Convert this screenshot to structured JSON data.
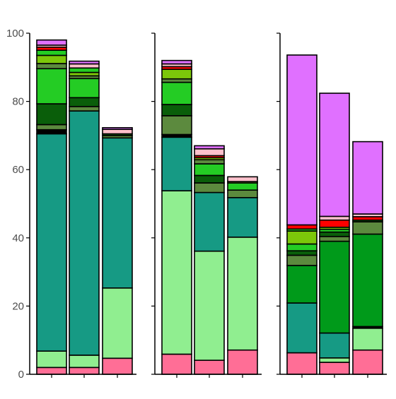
{
  "chart_data": {
    "type": "bar",
    "stacked": true,
    "facets": 3,
    "ylim": [
      0,
      100
    ],
    "y_ticks": [
      0,
      20,
      40,
      60,
      80,
      100
    ],
    "y_tick_labels": [
      "0",
      "20",
      "40",
      "60",
      "80",
      "100"
    ],
    "grid": false,
    "legend": "none",
    "x_tick_labels_visible": false,
    "colors": {
      "pink": "#FF6E96",
      "lightgreen": "#90EE90",
      "teal": "#169A84",
      "olive": "#5C8A3E",
      "darkgreen": "#0A5E0A",
      "green": "#24CC24",
      "lime": "#7CC70A",
      "red": "#FF0000",
      "lightpink": "#FFC0CB",
      "violet": "#E070FF",
      "midgreen": "#009A1A",
      "black": "#000000"
    },
    "panels": [
      {
        "bars": [
          {
            "segments": [
              {
                "color": "pink",
                "value": 2.0
              },
              {
                "color": "lightgreen",
                "value": 4.8
              },
              {
                "color": "teal",
                "value": 63.7
              },
              {
                "color": "black",
                "value": 1.2
              },
              {
                "color": "olive",
                "value": 1.5
              },
              {
                "color": "darkgreen",
                "value": 6.1
              },
              {
                "color": "green",
                "value": 10.3
              },
              {
                "color": "olive",
                "value": 1.5
              },
              {
                "color": "lime",
                "value": 2.4
              },
              {
                "color": "green",
                "value": 1.5
              },
              {
                "color": "red",
                "value": 0.9
              },
              {
                "color": "lightpink",
                "value": 0.6
              },
              {
                "color": "violet",
                "value": 1.5
              }
            ]
          },
          {
            "segments": [
              {
                "color": "pink",
                "value": 2.0
              },
              {
                "color": "lightgreen",
                "value": 3.6
              },
              {
                "color": "teal",
                "value": 71.6
              },
              {
                "color": "olive",
                "value": 1.3
              },
              {
                "color": "darkgreen",
                "value": 2.6
              },
              {
                "color": "green",
                "value": 5.6
              },
              {
                "color": "olive",
                "value": 0.8
              },
              {
                "color": "lime",
                "value": 1.0
              },
              {
                "color": "green",
                "value": 1.3
              },
              {
                "color": "lightpink",
                "value": 1.2
              },
              {
                "color": "violet",
                "value": 0.8
              }
            ]
          },
          {
            "segments": [
              {
                "color": "pink",
                "value": 4.7
              },
              {
                "color": "lightgreen",
                "value": 20.6
              },
              {
                "color": "teal",
                "value": 44.0
              },
              {
                "color": "olive",
                "value": 0.7
              },
              {
                "color": "darkgreen",
                "value": 0.5
              },
              {
                "color": "lightpink",
                "value": 1.3
              },
              {
                "color": "violet",
                "value": 0.5
              }
            ]
          }
        ]
      },
      {
        "bars": [
          {
            "segments": [
              {
                "color": "pink",
                "value": 5.9
              },
              {
                "color": "lightgreen",
                "value": 47.9
              },
              {
                "color": "teal",
                "value": 15.7
              },
              {
                "color": "black",
                "value": 0.8
              },
              {
                "color": "olive",
                "value": 5.5
              },
              {
                "color": "darkgreen",
                "value": 3.3
              },
              {
                "color": "green",
                "value": 6.5
              },
              {
                "color": "olive",
                "value": 1.0
              },
              {
                "color": "lime",
                "value": 2.8
              },
              {
                "color": "red",
                "value": 0.8
              },
              {
                "color": "lightpink",
                "value": 0.8
              },
              {
                "color": "violet",
                "value": 1.0
              }
            ]
          },
          {
            "segments": [
              {
                "color": "pink",
                "value": 4.1
              },
              {
                "color": "lightgreen",
                "value": 32.0
              },
              {
                "color": "teal",
                "value": 17.2
              },
              {
                "color": "olive",
                "value": 2.8
              },
              {
                "color": "darkgreen",
                "value": 2.2
              },
              {
                "color": "green",
                "value": 3.4
              },
              {
                "color": "olive",
                "value": 1.2
              },
              {
                "color": "lime",
                "value": 0.6
              },
              {
                "color": "red",
                "value": 0.6
              },
              {
                "color": "lightpink",
                "value": 2.0
              },
              {
                "color": "violet",
                "value": 0.9
              }
            ]
          },
          {
            "segments": [
              {
                "color": "pink",
                "value": 7.1
              },
              {
                "color": "lightgreen",
                "value": 33.1
              },
              {
                "color": "teal",
                "value": 11.6
              },
              {
                "color": "olive",
                "value": 2.2
              },
              {
                "color": "green",
                "value": 2.1
              },
              {
                "color": "lime",
                "value": 0.4
              },
              {
                "color": "lightpink",
                "value": 1.4
              }
            ]
          }
        ]
      },
      {
        "bars": [
          {
            "segments": [
              {
                "color": "pink",
                "value": 6.3
              },
              {
                "color": "teal",
                "value": 14.6
              },
              {
                "color": "midgreen",
                "value": 11.0
              },
              {
                "color": "olive",
                "value": 3.0
              },
              {
                "color": "darkgreen",
                "value": 1.3
              },
              {
                "color": "green",
                "value": 2.0
              },
              {
                "color": "lime",
                "value": 3.8
              },
              {
                "color": "green",
                "value": 0.6
              },
              {
                "color": "red",
                "value": 1.2
              },
              {
                "color": "violet",
                "value": 49.8
              }
            ]
          },
          {
            "segments": [
              {
                "color": "pink",
                "value": 3.5
              },
              {
                "color": "lightgreen",
                "value": 1.3
              },
              {
                "color": "teal",
                "value": 7.3
              },
              {
                "color": "midgreen",
                "value": 26.9
              },
              {
                "color": "olive",
                "value": 1.4
              },
              {
                "color": "darkgreen",
                "value": 1.3
              },
              {
                "color": "green",
                "value": 0.8
              },
              {
                "color": "lime",
                "value": 0.6
              },
              {
                "color": "red",
                "value": 2.1
              },
              {
                "color": "lightpink",
                "value": 1.1
              },
              {
                "color": "violet",
                "value": 36.1
              }
            ]
          },
          {
            "segments": [
              {
                "color": "pink",
                "value": 7.1
              },
              {
                "color": "lightgreen",
                "value": 6.4
              },
              {
                "color": "black",
                "value": 0.5
              },
              {
                "color": "midgreen",
                "value": 27.1
              },
              {
                "color": "olive",
                "value": 3.6
              },
              {
                "color": "darkgreen",
                "value": 0.5
              },
              {
                "color": "red",
                "value": 1.0
              },
              {
                "color": "lightpink",
                "value": 0.8
              },
              {
                "color": "violet",
                "value": 21.2
              }
            ]
          }
        ]
      }
    ]
  }
}
